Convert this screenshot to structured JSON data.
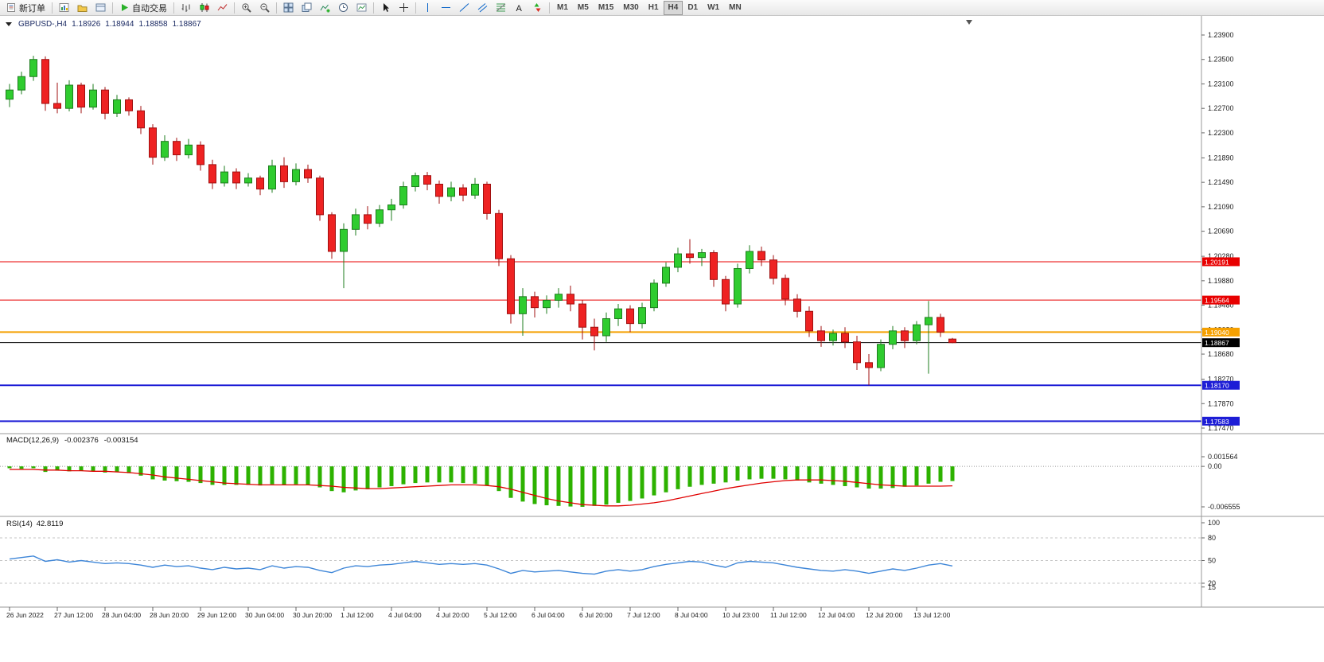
{
  "toolbar": {
    "notification_count": "1",
    "groups": [
      {
        "items": [
          {
            "name": "new-order-button",
            "icon": "new-order",
            "label": "新订单"
          }
        ]
      },
      {
        "items": [
          {
            "name": "new-chart-button",
            "icon": "new-chart"
          },
          {
            "name": "profiles-button",
            "icon": "profiles"
          },
          {
            "name": "data-window-button",
            "icon": "terminal"
          }
        ]
      },
      {
        "items": [
          {
            "name": "auto-trading-button",
            "icon": "play",
            "label": "自动交易"
          }
        ]
      },
      {
        "items": [
          {
            "name": "bars-chart-button",
            "icon": "bars"
          },
          {
            "name": "candles-chart-button",
            "icon": "candles"
          },
          {
            "name": "line-chart-button",
            "icon": "line"
          }
        ]
      },
      {
        "items": [
          {
            "name": "zoom-in-button",
            "icon": "zoom-in"
          },
          {
            "name": "zoom-out-button",
            "icon": "zoom-out"
          }
        ]
      },
      {
        "items": [
          {
            "name": "tile-windows-button",
            "icon": "tile"
          },
          {
            "name": "cascade-windows-button",
            "icon": "arrange"
          },
          {
            "name": "indicators-button",
            "icon": "indicators"
          },
          {
            "name": "periods-button",
            "icon": "clock"
          },
          {
            "name": "templates-button",
            "icon": "template"
          }
        ]
      },
      {
        "items": [
          {
            "name": "cursor-button",
            "icon": "cursor"
          },
          {
            "name": "crosshair-button",
            "icon": "crosshair"
          }
        ]
      },
      {
        "items": [
          {
            "name": "vertical-line-button",
            "icon": "vline"
          },
          {
            "name": "horizontal-line-button",
            "icon": "hline"
          },
          {
            "name": "trendline-button",
            "icon": "trend"
          },
          {
            "name": "channel-button",
            "icon": "channel"
          },
          {
            "name": "fibonacci-button",
            "icon": "fibo"
          },
          {
            "name": "text-button",
            "icon": "text"
          },
          {
            "name": "arrows-button",
            "icon": "arrows"
          }
        ]
      },
      {
        "items": [
          {
            "name": "tf-m1-button",
            "label": "M1",
            "tf": true
          },
          {
            "name": "tf-m5-button",
            "label": "M5",
            "tf": true
          },
          {
            "name": "tf-m15-button",
            "label": "M15",
            "tf": true
          },
          {
            "name": "tf-m30-button",
            "label": "M30",
            "tf": true
          },
          {
            "name": "tf-h1-button",
            "label": "H1",
            "tf": true
          },
          {
            "name": "tf-h4-button",
            "label": "H4",
            "tf": true,
            "active": true
          },
          {
            "name": "tf-d1-button",
            "label": "D1",
            "tf": true
          },
          {
            "name": "tf-w1-button",
            "label": "W1",
            "tf": true
          },
          {
            "name": "tf-mn-button",
            "label": "MN",
            "tf": true
          }
        ]
      }
    ]
  },
  "chart_header": {
    "symbol": "GBPUSD-,H4",
    "open": "1.18926",
    "high": "1.18944",
    "low": "1.18858",
    "close": "1.18867"
  },
  "chart_data": {
    "type": "candlestick",
    "symbol": "GBPUSD-",
    "timeframe": "H4",
    "price_scale": [
      "1.23900",
      "1.23500",
      "1.23100",
      "1.22700",
      "1.22300",
      "1.21890",
      "1.21490",
      "1.21090",
      "1.20690",
      "1.20280",
      "1.19880",
      "1.19480",
      "1.19080",
      "1.18680",
      "1.18270",
      "1.17870",
      "1.17470"
    ],
    "time_labels": [
      "26 Jun 2022",
      "27 Jun 12:00",
      "28 Jun 04:00",
      "28 Jun 20:00",
      "29 Jun 12:00",
      "30 Jun 04:00",
      "30 Jun 20:00",
      "1 Jul 12:00",
      "4 Jul 04:00",
      "4 Jul 20:00",
      "5 Jul 12:00",
      "6 Jul 04:00",
      "6 Jul 20:00",
      "7 Jul 12:00",
      "8 Jul 04:00",
      "10 Jul 23:00",
      "11 Jul 12:00",
      "12 Jul 04:00",
      "12 Jul 20:00",
      "13 Jul 12:00"
    ],
    "ylim": [
      1.1747,
      1.239
    ],
    "colors": {
      "up": "#2FCC2F",
      "up_border": "#1E7D1E",
      "down": "#EE2222",
      "down_border": "#A01010",
      "background": "#FFFFFF"
    },
    "lines": [
      {
        "label": "1.20191",
        "price": 1.20191,
        "color": "#E80000",
        "width": 1
      },
      {
        "label": "1.19564",
        "price": 1.19564,
        "color": "#E80000",
        "width": 1
      },
      {
        "label": "1.19040",
        "price": 1.1904,
        "color": "#F5A000",
        "width": 2
      },
      {
        "label": "1.18170",
        "price": 1.1817,
        "color": "#1D1DD6",
        "width": 2
      },
      {
        "label": "1.17583",
        "price": 1.17583,
        "color": "#1D1DD6",
        "width": 2
      }
    ],
    "current_price": {
      "label": "1.18867",
      "price": 1.18867,
      "color": "#000000"
    },
    "candles": [
      [
        1.2285,
        1.231,
        1.2272,
        1.23
      ],
      [
        1.23,
        1.233,
        1.2293,
        1.2322
      ],
      [
        1.2322,
        1.2356,
        1.2315,
        1.235
      ],
      [
        1.235,
        1.2355,
        1.2266,
        1.2278
      ],
      [
        1.2278,
        1.2312,
        1.2262,
        1.227
      ],
      [
        1.227,
        1.2316,
        1.2265,
        1.2308
      ],
      [
        1.2308,
        1.2312,
        1.2262,
        1.2272
      ],
      [
        1.2272,
        1.231,
        1.2268,
        1.23
      ],
      [
        1.23,
        1.2305,
        1.2252,
        1.2262
      ],
      [
        1.2262,
        1.2292,
        1.2256,
        1.2284
      ],
      [
        1.2284,
        1.2288,
        1.2258,
        1.2266
      ],
      [
        1.2266,
        1.2274,
        1.2228,
        1.2238
      ],
      [
        1.2238,
        1.2244,
        1.2178,
        1.219
      ],
      [
        1.219,
        1.2226,
        1.2184,
        1.2216
      ],
      [
        1.2216,
        1.2222,
        1.2184,
        1.2194
      ],
      [
        1.2194,
        1.222,
        1.2188,
        1.221
      ],
      [
        1.221,
        1.2216,
        1.2168,
        1.2178
      ],
      [
        1.2178,
        1.2186,
        1.2138,
        1.2148
      ],
      [
        1.2148,
        1.2176,
        1.2142,
        1.2166
      ],
      [
        1.2166,
        1.2172,
        1.2138,
        1.2148
      ],
      [
        1.2148,
        1.2164,
        1.2142,
        1.2156
      ],
      [
        1.2156,
        1.216,
        1.2128,
        1.2138
      ],
      [
        1.2138,
        1.2186,
        1.2132,
        1.2176
      ],
      [
        1.2176,
        1.219,
        1.214,
        1.215
      ],
      [
        1.215,
        1.218,
        1.2144,
        1.217
      ],
      [
        1.217,
        1.2178,
        1.2148,
        1.2156
      ],
      [
        1.2156,
        1.216,
        1.2086,
        1.2096
      ],
      [
        1.2096,
        1.21,
        1.2024,
        1.2036
      ],
      [
        1.2036,
        1.2082,
        1.1976,
        1.2072
      ],
      [
        1.2072,
        1.2106,
        1.2062,
        1.2096
      ],
      [
        1.2096,
        1.211,
        1.2072,
        1.2082
      ],
      [
        1.2082,
        1.2112,
        1.2076,
        1.2104
      ],
      [
        1.2104,
        1.2122,
        1.2086,
        1.2112
      ],
      [
        1.2112,
        1.215,
        1.2106,
        1.2142
      ],
      [
        1.2142,
        1.2165,
        1.2134,
        1.216
      ],
      [
        1.216,
        1.2166,
        1.2136,
        1.2146
      ],
      [
        1.2146,
        1.2152,
        1.2114,
        1.2126
      ],
      [
        1.2126,
        1.215,
        1.2118,
        1.214
      ],
      [
        1.214,
        1.2146,
        1.2118,
        1.2128
      ],
      [
        1.2128,
        1.2156,
        1.2122,
        1.2146
      ],
      [
        1.2146,
        1.215,
        1.2088,
        1.2098
      ],
      [
        1.2098,
        1.2104,
        1.2012,
        1.2024
      ],
      [
        1.2024,
        1.203,
        1.1918,
        1.1934
      ],
      [
        1.1934,
        1.1976,
        1.1898,
        1.1962
      ],
      [
        1.1962,
        1.197,
        1.1928,
        1.1944
      ],
      [
        1.1944,
        1.1964,
        1.1934,
        1.1956
      ],
      [
        1.1956,
        1.1976,
        1.1944,
        1.1966
      ],
      [
        1.1966,
        1.198,
        1.1938,
        1.195
      ],
      [
        1.195,
        1.1956,
        1.1892,
        1.1912
      ],
      [
        1.1912,
        1.1926,
        1.1874,
        1.1898
      ],
      [
        1.1898,
        1.1936,
        1.1888,
        1.1926
      ],
      [
        1.1926,
        1.195,
        1.1914,
        1.1942
      ],
      [
        1.1942,
        1.1948,
        1.1904,
        1.1918
      ],
      [
        1.1918,
        1.1952,
        1.191,
        1.1944
      ],
      [
        1.1944,
        1.199,
        1.1938,
        1.1984
      ],
      [
        1.1984,
        1.2018,
        1.1978,
        1.201
      ],
      [
        1.201,
        1.2042,
        1.2002,
        1.2032
      ],
      [
        1.2032,
        1.2056,
        1.2016,
        1.2026
      ],
      [
        1.2026,
        1.204,
        1.2012,
        1.2034
      ],
      [
        1.2034,
        1.2038,
        1.1978,
        1.199
      ],
      [
        1.199,
        1.1996,
        1.1938,
        1.195
      ],
      [
        1.195,
        1.2016,
        1.1944,
        1.2008
      ],
      [
        1.2008,
        1.2046,
        1.2,
        1.2036
      ],
      [
        1.2036,
        1.2044,
        1.2012,
        1.2022
      ],
      [
        1.2022,
        1.203,
        1.1982,
        1.1992
      ],
      [
        1.1992,
        1.1998,
        1.1948,
        1.1958
      ],
      [
        1.1958,
        1.1966,
        1.1928,
        1.1938
      ],
      [
        1.1938,
        1.1946,
        1.1896,
        1.1906
      ],
      [
        1.1906,
        1.1914,
        1.188,
        1.189
      ],
      [
        1.189,
        1.1908,
        1.1882,
        1.1902
      ],
      [
        1.1902,
        1.1912,
        1.1878,
        1.1888
      ],
      [
        1.1888,
        1.1898,
        1.1842,
        1.1854
      ],
      [
        1.1854,
        1.1868,
        1.1817,
        1.1846
      ],
      [
        1.1846,
        1.1892,
        1.184,
        1.1884
      ],
      [
        1.1884,
        1.1914,
        1.1876,
        1.1906
      ],
      [
        1.1906,
        1.1912,
        1.1878,
        1.189
      ],
      [
        1.189,
        1.1922,
        1.1884,
        1.1916
      ],
      [
        1.1916,
        1.1955,
        1.1836,
        1.1928
      ],
      [
        1.1928,
        1.1934,
        1.1896,
        1.1904
      ],
      [
        1.18926,
        1.18944,
        1.18858,
        1.18867
      ]
    ],
    "macd": {
      "label": "MACD(12,26,9)",
      "values": [
        "-0.002376",
        "-0.003154"
      ],
      "scale": [
        {
          "label": "0.001564",
          "value": 0.001564
        },
        {
          "label": "0.00",
          "value": 0
        },
        {
          "label": "-0.006555",
          "value": -0.006555
        }
      ],
      "colors": {
        "histogram": "#2DB200",
        "signal": "#E00000"
      },
      "histogram": [
        -0.0003,
        -0.0004,
        -0.0003,
        -0.0009,
        -0.0007,
        -0.0008,
        -0.0007,
        -0.0008,
        -0.001,
        -0.0009,
        -0.0011,
        -0.0015,
        -0.0021,
        -0.0023,
        -0.0024,
        -0.0025,
        -0.0027,
        -0.003,
        -0.003,
        -0.003,
        -0.003,
        -0.0031,
        -0.0029,
        -0.003,
        -0.0029,
        -0.003,
        -0.0034,
        -0.004,
        -0.0042,
        -0.0039,
        -0.0037,
        -0.0034,
        -0.0032,
        -0.0029,
        -0.0027,
        -0.0026,
        -0.0026,
        -0.0026,
        -0.0027,
        -0.0028,
        -0.0031,
        -0.004,
        -0.0051,
        -0.0057,
        -0.0061,
        -0.0063,
        -0.0064,
        -0.0065,
        -0.00655,
        -0.0064,
        -0.0062,
        -0.0059,
        -0.0056,
        -0.0052,
        -0.0047,
        -0.0042,
        -0.0037,
        -0.0033,
        -0.003,
        -0.0028,
        -0.0026,
        -0.0023,
        -0.0021,
        -0.002,
        -0.002,
        -0.0021,
        -0.0023,
        -0.0026,
        -0.0028,
        -0.003,
        -0.0032,
        -0.0034,
        -0.0036,
        -0.0036,
        -0.0035,
        -0.0033,
        -0.0031,
        -0.0028,
        -0.0025,
        -0.002376
      ],
      "signal": [
        -0.0005,
        -0.0005,
        -0.0005,
        -0.0006,
        -0.0006,
        -0.0007,
        -0.0007,
        -0.0008,
        -0.0008,
        -0.0009,
        -0.001,
        -0.0012,
        -0.0014,
        -0.0017,
        -0.0019,
        -0.0021,
        -0.0023,
        -0.0025,
        -0.0027,
        -0.0028,
        -0.0029,
        -0.003,
        -0.003,
        -0.003,
        -0.003,
        -0.003,
        -0.0031,
        -0.0032,
        -0.0034,
        -0.0035,
        -0.0036,
        -0.0036,
        -0.0035,
        -0.0034,
        -0.0033,
        -0.0032,
        -0.0031,
        -0.003,
        -0.003,
        -0.003,
        -0.0031,
        -0.0033,
        -0.0037,
        -0.0042,
        -0.0047,
        -0.0052,
        -0.0056,
        -0.0059,
        -0.0062,
        -0.0063,
        -0.0064,
        -0.0064,
        -0.0063,
        -0.0061,
        -0.0059,
        -0.0056,
        -0.0052,
        -0.0048,
        -0.0044,
        -0.004,
        -0.0036,
        -0.0033,
        -0.003,
        -0.0027,
        -0.0025,
        -0.0023,
        -0.0022,
        -0.0022,
        -0.0022,
        -0.0023,
        -0.0024,
        -0.0026,
        -0.0028,
        -0.003,
        -0.0031,
        -0.0032,
        -0.0032,
        -0.0032,
        -0.0032,
        -0.003154
      ]
    },
    "rsi": {
      "label": "RSI(14)",
      "value": "42.8119",
      "color": "#3E86D8",
      "levels": [
        80,
        50,
        20
      ],
      "scale": [
        {
          "label": "100",
          "value": 100
        },
        {
          "label": "80",
          "value": 80
        },
        {
          "label": "50",
          "value": 50
        },
        {
          "label": "20",
          "value": 20
        },
        {
          "label": "15",
          "value": 15
        }
      ],
      "points": [
        52,
        54,
        56,
        49,
        51,
        48,
        50,
        48,
        46,
        47,
        46,
        44,
        41,
        44,
        42,
        43,
        40,
        38,
        41,
        39,
        40,
        38,
        43,
        40,
        42,
        41,
        37,
        34,
        40,
        43,
        42,
        44,
        45,
        47,
        49,
        47,
        45,
        46,
        45,
        46,
        44,
        39,
        33,
        37,
        35,
        36,
        37,
        35,
        33,
        32,
        36,
        38,
        36,
        38,
        42,
        45,
        47,
        49,
        48,
        44,
        41,
        47,
        49,
        48,
        47,
        44,
        41,
        39,
        37,
        36,
        38,
        36,
        33,
        36,
        39,
        37,
        40,
        44,
        46,
        42.8
      ]
    }
  }
}
